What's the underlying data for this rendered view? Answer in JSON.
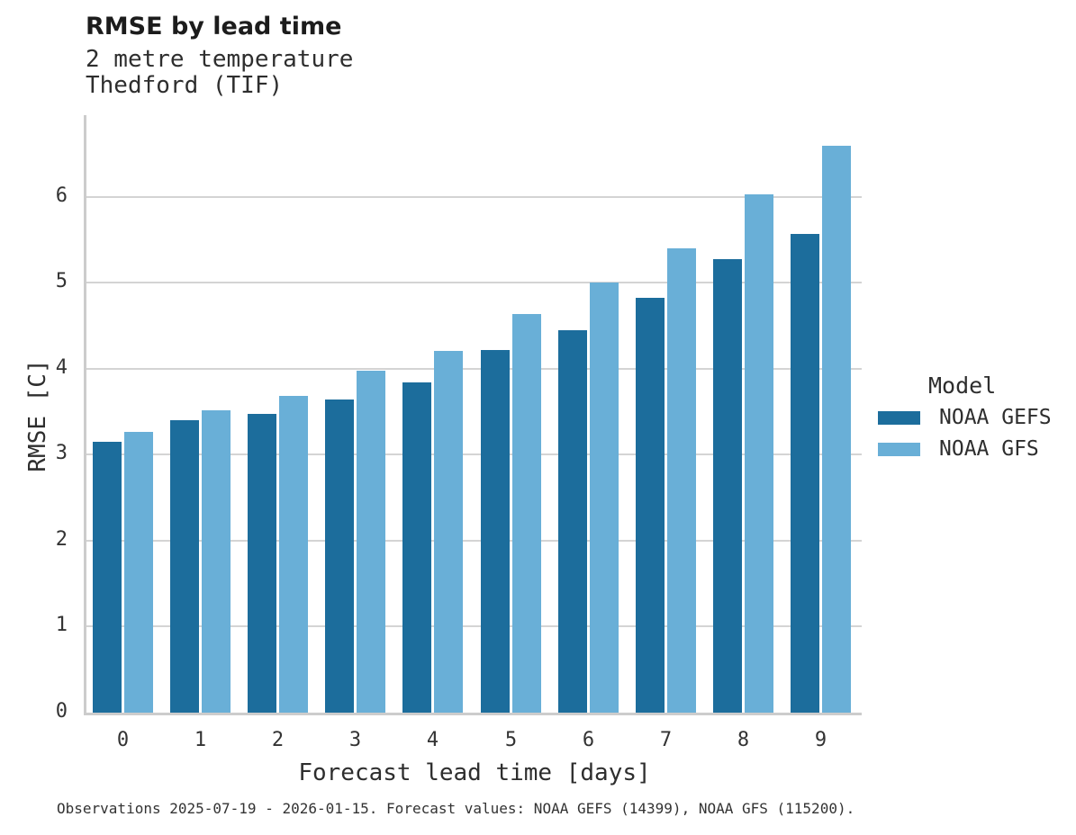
{
  "chart_data": {
    "type": "bar",
    "title": "RMSE by lead time",
    "subtitle": [
      "2 metre temperature",
      "Thedford (TIF)"
    ],
    "categories": [
      "0",
      "1",
      "2",
      "3",
      "4",
      "5",
      "6",
      "7",
      "8",
      "9"
    ],
    "series": [
      {
        "name": "NOAA GEFS",
        "color": "#1c6d9c",
        "values": [
          3.15,
          3.4,
          3.48,
          3.64,
          3.84,
          4.22,
          4.45,
          4.83,
          5.28,
          5.57
        ]
      },
      {
        "name": "NOAA GFS",
        "color": "#69afd7",
        "values": [
          3.27,
          3.52,
          3.69,
          3.98,
          4.21,
          4.64,
          5.0,
          5.4,
          6.03,
          6.59
        ]
      }
    ],
    "xlabel": "Forecast lead time [days]",
    "ylabel": "RMSE [C]",
    "yticks": [
      0,
      1,
      2,
      3,
      4,
      5,
      6
    ],
    "ylim": [
      0,
      6.95
    ],
    "grid": "horizontal",
    "legend_title": "Model",
    "legend_position": "right",
    "caption": "Observations 2025-07-19 - 2026-01-15. Forecast values: NOAA GEFS (14399), NOAA GFS (115200)."
  },
  "colors": {
    "gridline": "#d4d4d4",
    "axis_spine": "#cccccc",
    "background": "#ffffff"
  }
}
